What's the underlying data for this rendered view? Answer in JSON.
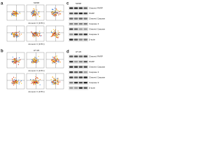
{
  "panels": [
    {
      "label": "a",
      "cell_line": "SW48",
      "axis_labels": [
        "Annexin V (FITC)",
        "Annexin V (FITC)"
      ]
    },
    {
      "label": "b",
      "cell_line": "HT-29",
      "axis_labels": [
        "Annexin V (FITC)",
        "Annexin V (FITC)"
      ]
    },
    {
      "label": "c",
      "cell_line": "SW48",
      "rows": [
        "Cleaved PARP",
        "PARP",
        "Cleaved Caspase 3",
        "Caspase 3",
        "Cleaved Caspase 9",
        "Caspase 9",
        "β-actin"
      ]
    },
    {
      "label": "d",
      "cell_line": "HT-29",
      "rows": [
        "Cleaved PARP",
        "PARP",
        "Cleaved Caspase 3",
        "Caspase 3",
        "Cleaved Caspase 9",
        "Caspase 9",
        "β-actin"
      ]
    }
  ]
}
